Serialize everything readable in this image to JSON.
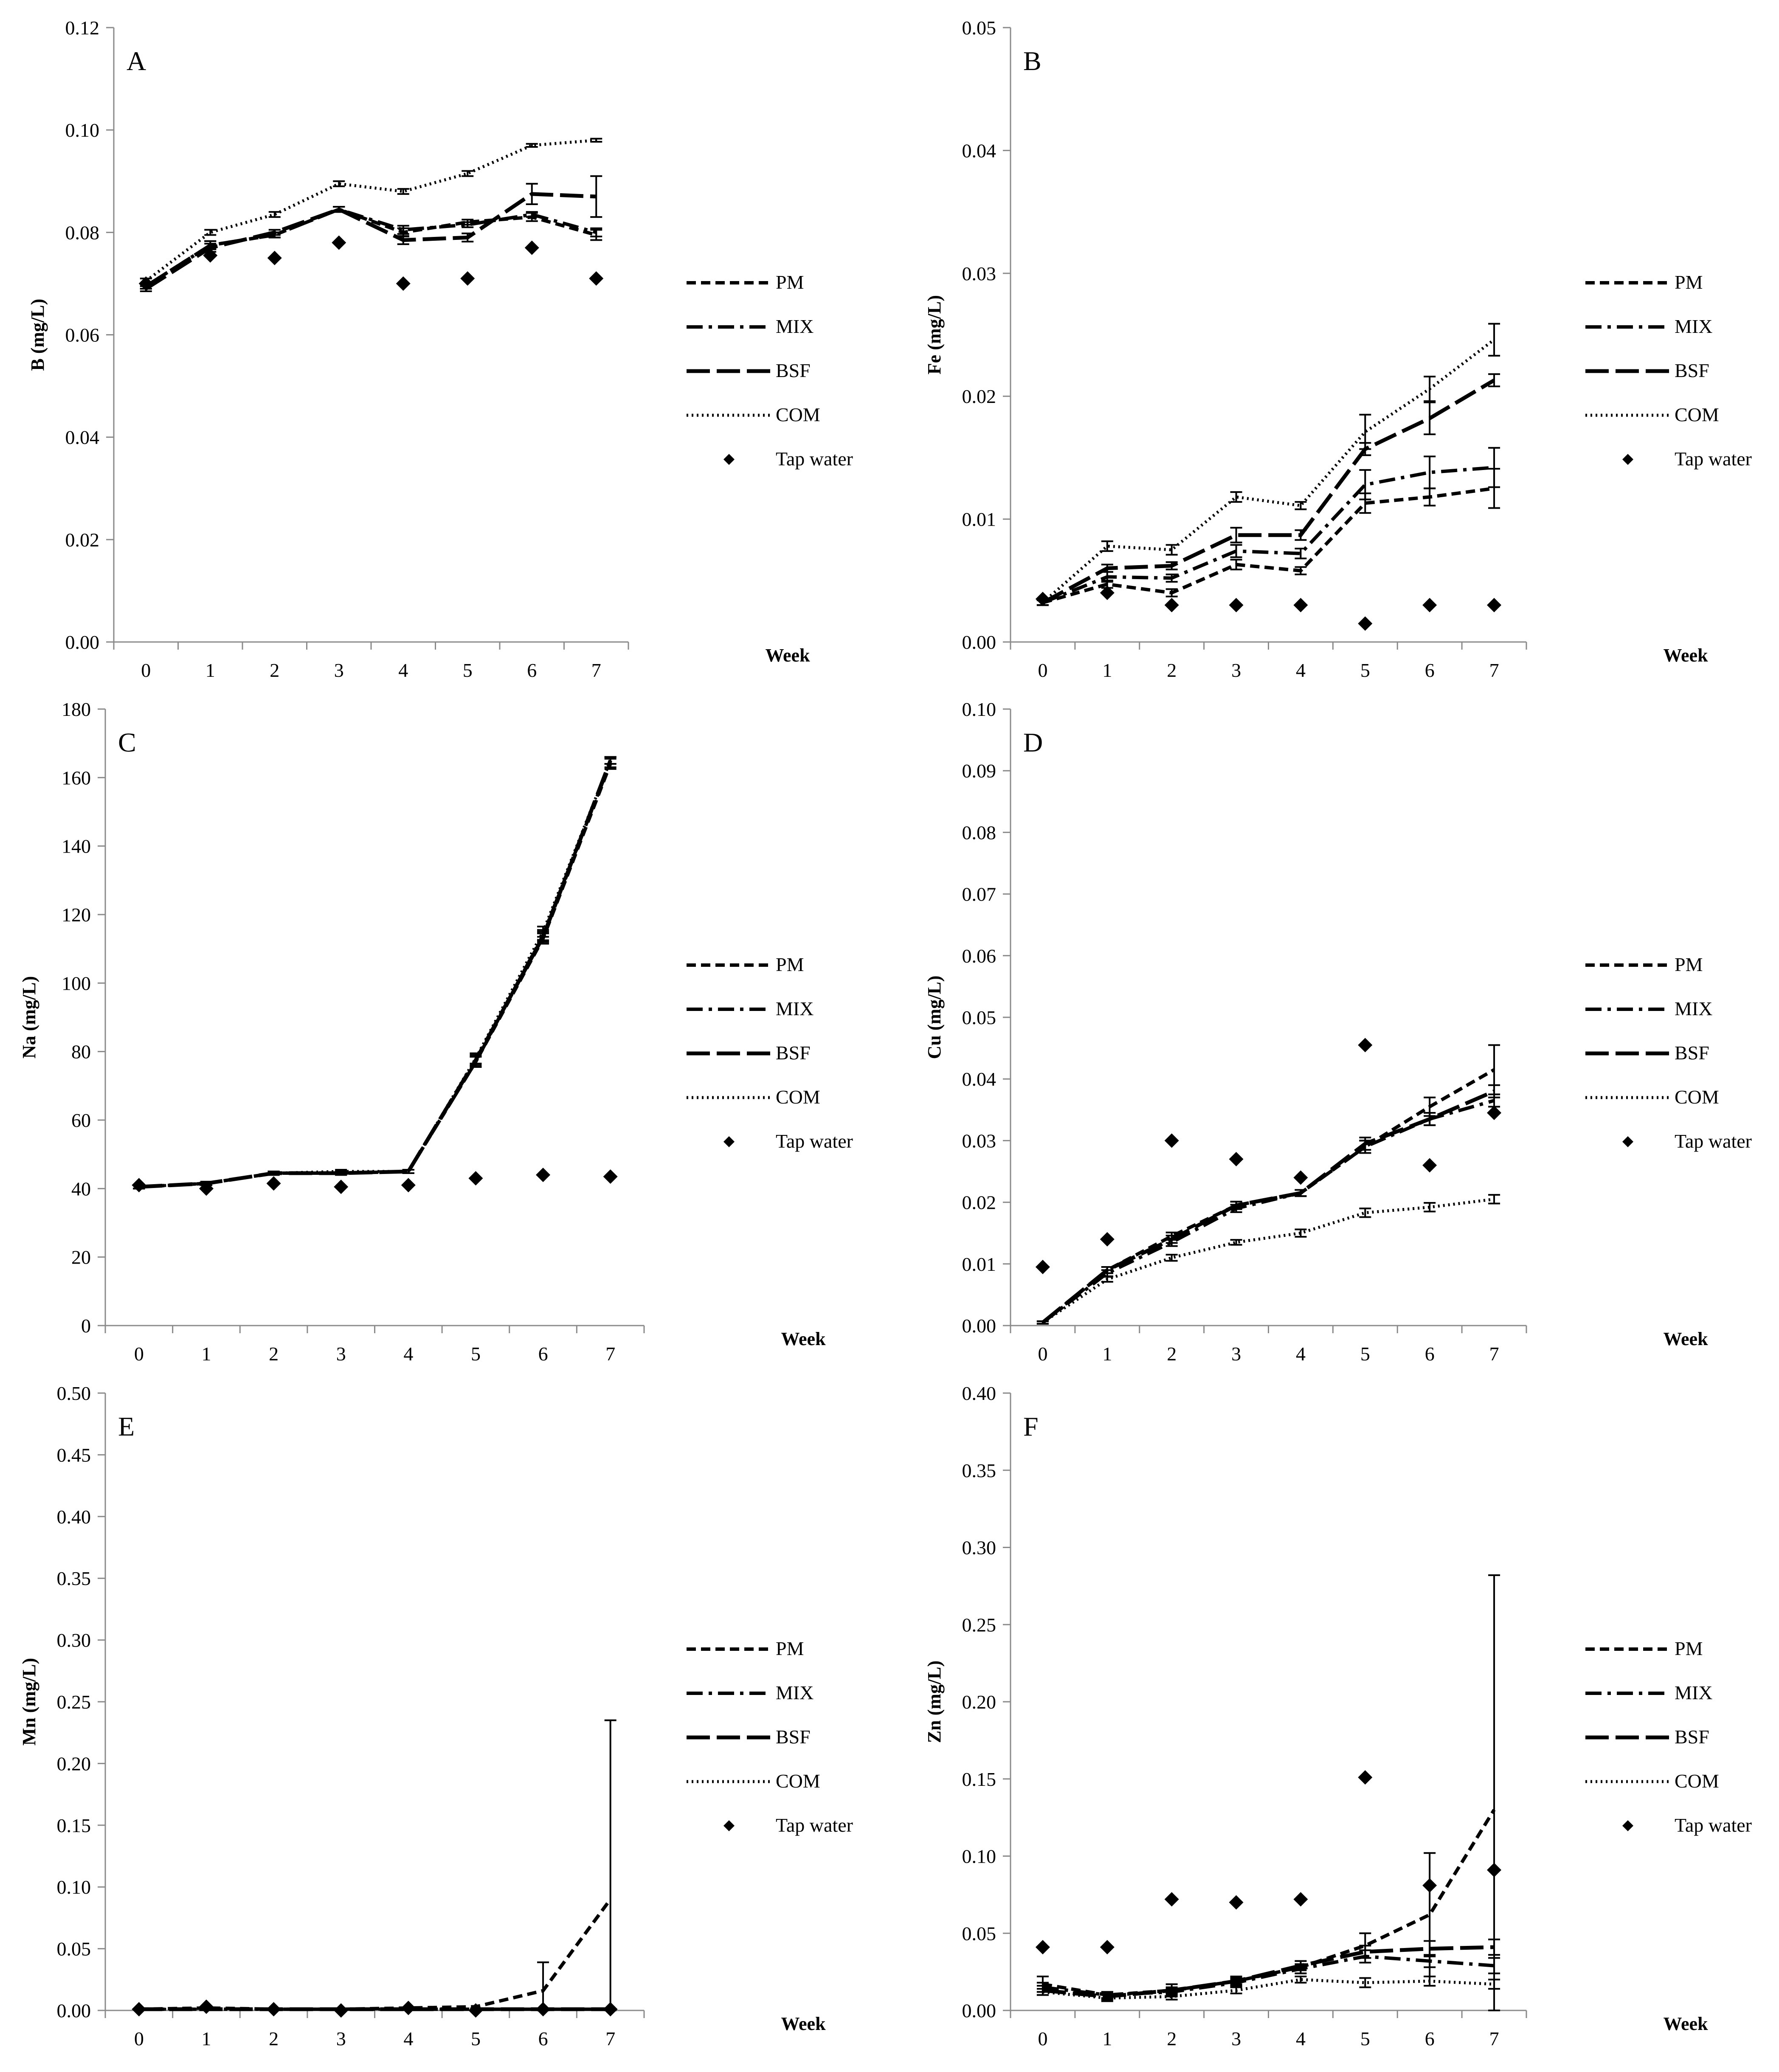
{
  "chart_data": [
    {
      "type": "line",
      "panel_label": "A",
      "ylabel": "B (mg/L)",
      "xlabel": "Week",
      "x": [
        0,
        1,
        2,
        3,
        4,
        5,
        6,
        7
      ],
      "x_tick_labels": [
        "0",
        "1",
        "2",
        "3",
        "4",
        "5",
        "6",
        "7"
      ],
      "ylim": [
        0,
        0.12
      ],
      "y_ticks": [
        0,
        0.02,
        0.04,
        0.06,
        0.08,
        0.1,
        0.12
      ],
      "y_tick_labels": [
        "0.00",
        "0.02",
        "0.04",
        "0.06",
        "0.08",
        "0.10",
        "0.12"
      ],
      "series": [
        {
          "name": "PM",
          "style": "short-dash",
          "values": [
            0.0695,
            0.0775,
            0.0795,
            0.0845,
            0.08,
            0.082,
            0.083,
            0.0795
          ],
          "errors": [
            0.0005,
            0.0008,
            0.0005,
            0.0005,
            0.0008,
            0.0005,
            0.0008,
            0.001
          ]
        },
        {
          "name": "MIX",
          "style": "dash-dot",
          "values": [
            0.0695,
            0.0775,
            0.0795,
            0.0845,
            0.0805,
            0.0815,
            0.0835,
            0.08
          ],
          "errors": [
            0.0005,
            0.0008,
            0.0005,
            0.0005,
            0.0008,
            0.0005,
            0.0005,
            0.0008
          ]
        },
        {
          "name": "BSF",
          "style": "long-dash",
          "values": [
            0.069,
            0.077,
            0.08,
            0.0845,
            0.0785,
            0.079,
            0.0875,
            0.087
          ],
          "errors": [
            0.0005,
            0.0008,
            0.0005,
            0.0005,
            0.0008,
            0.0008,
            0.002,
            0.004
          ]
        },
        {
          "name": "COM",
          "style": "dotted",
          "values": [
            0.0705,
            0.08,
            0.0835,
            0.0895,
            0.088,
            0.0915,
            0.097,
            0.098
          ],
          "errors": [
            0.0005,
            0.0005,
            0.0005,
            0.0005,
            0.0005,
            0.0005,
            0.0003,
            0.0003
          ]
        },
        {
          "name": "Tap water",
          "style": "markers",
          "values": [
            0.07,
            0.0755,
            0.075,
            0.078,
            0.07,
            0.071,
            0.077,
            0.071
          ]
        }
      ]
    },
    {
      "type": "line",
      "panel_label": "B",
      "ylabel": "Fe (mg/L)",
      "xlabel": "Week",
      "x": [
        0,
        1,
        2,
        3,
        4,
        5,
        6,
        7
      ],
      "x_tick_labels": [
        "0",
        "1",
        "2",
        "3",
        "4",
        "5",
        "6",
        "7"
      ],
      "ylim": [
        0,
        0.05
      ],
      "y_ticks": [
        0,
        0.01,
        0.02,
        0.03,
        0.04,
        0.05
      ],
      "y_tick_labels": [
        "0.00",
        "0.01",
        "0.02",
        "0.03",
        "0.04",
        "0.05"
      ],
      "series": [
        {
          "name": "PM",
          "style": "short-dash",
          "values": [
            0.0032,
            0.0047,
            0.004,
            0.0063,
            0.0058,
            0.0113,
            0.0118,
            0.0125
          ],
          "errors": [
            0.0002,
            0.0003,
            0.0003,
            0.0004,
            0.0003,
            0.0008,
            0.0007,
            0.0016
          ]
        },
        {
          "name": "MIX",
          "style": "dash-dot",
          "values": [
            0.0032,
            0.0053,
            0.0052,
            0.0074,
            0.0072,
            0.0128,
            0.0138,
            0.0142
          ],
          "errors": [
            0.0002,
            0.0004,
            0.0003,
            0.0005,
            0.0004,
            0.0012,
            0.0013,
            0.0016
          ]
        },
        {
          "name": "BSF",
          "style": "long-dash",
          "values": [
            0.0032,
            0.006,
            0.0062,
            0.0087,
            0.0087,
            0.0157,
            0.0182,
            0.0213
          ],
          "errors": [
            0.0002,
            0.0003,
            0.0003,
            0.0006,
            0.0004,
            0.0005,
            0.0013,
            0.0005
          ]
        },
        {
          "name": "COM",
          "style": "dotted",
          "values": [
            0.0032,
            0.0078,
            0.0075,
            0.0118,
            0.0111,
            0.0171,
            0.0206,
            0.0246
          ],
          "errors": [
            0.0002,
            0.0004,
            0.0004,
            0.0004,
            0.0003,
            0.0014,
            0.001,
            0.0013
          ]
        },
        {
          "name": "Tap water",
          "style": "markers",
          "values": [
            0.0035,
            0.004,
            0.003,
            0.003,
            0.003,
            0.0015,
            0.003,
            0.003
          ]
        }
      ]
    },
    {
      "type": "line",
      "panel_label": "C",
      "ylabel": "Na (mg/L)",
      "xlabel": "Week",
      "x": [
        0,
        1,
        2,
        3,
        4,
        5,
        6,
        7
      ],
      "x_tick_labels": [
        "0",
        "1",
        "2",
        "3",
        "4",
        "5",
        "6",
        "7"
      ],
      "ylim": [
        0,
        180
      ],
      "y_ticks": [
        0,
        20,
        40,
        60,
        80,
        100,
        120,
        140,
        160,
        180
      ],
      "y_tick_labels": [
        "0",
        "20",
        "40",
        "60",
        "80",
        "100",
        "120",
        "140",
        "160",
        "180"
      ],
      "series": [
        {
          "name": "PM",
          "style": "short-dash",
          "values": [
            40.5,
            41.5,
            44.5,
            44.5,
            45,
            77,
            113,
            164
          ],
          "errors": [
            0.5,
            0.5,
            0.5,
            0.5,
            0.5,
            1.5,
            1.5,
            1.5
          ]
        },
        {
          "name": "MIX",
          "style": "dash-dot",
          "values": [
            40.5,
            41.5,
            44.5,
            44.5,
            45,
            77,
            114,
            164.5
          ],
          "errors": [
            0.5,
            0.5,
            0.5,
            0.5,
            0.5,
            1.5,
            1.5,
            1.5
          ]
        },
        {
          "name": "BSF",
          "style": "long-dash",
          "values": [
            40.5,
            41.5,
            44.5,
            44.5,
            45,
            77.5,
            113.5,
            165
          ],
          "errors": [
            0.5,
            0.5,
            0.5,
            0.5,
            0.5,
            1.5,
            1.5,
            1
          ]
        },
        {
          "name": "COM",
          "style": "dotted",
          "values": [
            40.5,
            41.5,
            44.5,
            45,
            45,
            78,
            115,
            165
          ],
          "errors": [
            0.5,
            0.5,
            0.5,
            0.5,
            0.5,
            1.5,
            1.5,
            1
          ]
        },
        {
          "name": "Tap water",
          "style": "markers",
          "values": [
            41,
            40,
            41.5,
            40.5,
            41,
            43,
            44,
            43.5
          ]
        }
      ]
    },
    {
      "type": "line",
      "panel_label": "D",
      "ylabel": "Cu (mg/L)",
      "xlabel": "Week",
      "x": [
        0,
        1,
        2,
        3,
        4,
        5,
        6,
        7
      ],
      "x_tick_labels": [
        "0",
        "1",
        "2",
        "3",
        "4",
        "5",
        "6",
        "7"
      ],
      "ylim": [
        0,
        0.1
      ],
      "y_ticks": [
        0,
        0.01,
        0.02,
        0.03,
        0.04,
        0.05,
        0.06,
        0.07,
        0.08,
        0.09,
        0.1
      ],
      "y_tick_labels": [
        "0.00",
        "0.01",
        "0.02",
        "0.03",
        "0.04",
        "0.05",
        "0.06",
        "0.07",
        "0.08",
        "0.09",
        "0.10"
      ],
      "series": [
        {
          "name": "PM",
          "style": "short-dash",
          "values": [
            0.0005,
            0.009,
            0.0145,
            0.0195,
            0.0215,
            0.029,
            0.0355,
            0.0415
          ],
          "errors": [
            0.0002,
            0.0005,
            0.0006,
            0.0006,
            0.0005,
            0.001,
            0.0015,
            0.004
          ]
        },
        {
          "name": "MIX",
          "style": "dash-dot",
          "values": [
            0.0005,
            0.0085,
            0.0135,
            0.019,
            0.0215,
            0.029,
            0.0335,
            0.0365
          ],
          "errors": [
            0.0002,
            0.0005,
            0.0006,
            0.0006,
            0.0005,
            0.001,
            0.001,
            0.001
          ]
        },
        {
          "name": "BSF",
          "style": "long-dash",
          "values": [
            0.0005,
            0.009,
            0.014,
            0.0195,
            0.0215,
            0.0295,
            0.0335,
            0.038
          ],
          "errors": [
            0.0002,
            0.0005,
            0.0006,
            0.0006,
            0.0005,
            0.001,
            0.001,
            0.001
          ]
        },
        {
          "name": "COM",
          "style": "dotted",
          "values": [
            0.0005,
            0.0075,
            0.011,
            0.0135,
            0.015,
            0.0183,
            0.0192,
            0.0205
          ],
          "errors": [
            0.0002,
            0.0004,
            0.0005,
            0.0004,
            0.0006,
            0.0007,
            0.0007,
            0.0007
          ]
        },
        {
          "name": "Tap water",
          "style": "markers",
          "values": [
            0.0095,
            0.014,
            0.03,
            0.027,
            0.024,
            0.0455,
            0.026,
            0.0345
          ]
        }
      ]
    },
    {
      "type": "line",
      "panel_label": "E",
      "ylabel": "Mn (mg/L)",
      "xlabel": "Week",
      "x": [
        0,
        1,
        2,
        3,
        4,
        5,
        6,
        7
      ],
      "x_tick_labels": [
        "0",
        "1",
        "2",
        "3",
        "4",
        "5",
        "6",
        "7"
      ],
      "ylim": [
        0,
        0.5
      ],
      "y_ticks": [
        0,
        0.05,
        0.1,
        0.15,
        0.2,
        0.25,
        0.3,
        0.35,
        0.4,
        0.45,
        0.5
      ],
      "y_tick_labels": [
        "0.00",
        "0.05",
        "0.10",
        "0.15",
        "0.20",
        "0.25",
        "0.30",
        "0.35",
        "0.40",
        "0.45",
        "0.50"
      ],
      "series": [
        {
          "name": "PM",
          "style": "short-dash",
          "values": [
            0.001,
            0.002,
            0.001,
            0.001,
            0.002,
            0.003,
            0.016,
            0.09
          ],
          "errors": [
            0,
            0,
            0,
            0,
            0,
            0,
            0.023,
            0.145
          ]
        },
        {
          "name": "MIX",
          "style": "dash-dot",
          "values": [
            0.001,
            0.001,
            0.001,
            0.001,
            0.001,
            0.001,
            0.001,
            0.001
          ]
        },
        {
          "name": "BSF",
          "style": "long-dash",
          "values": [
            0.001,
            0.001,
            0.001,
            0.001,
            0.001,
            0.001,
            0.001,
            0.001
          ]
        },
        {
          "name": "COM",
          "style": "dotted",
          "values": [
            0.001,
            0.001,
            0.001,
            0.001,
            0.001,
            0.001,
            0.001,
            0.001
          ]
        },
        {
          "name": "Tap water",
          "style": "markers",
          "values": [
            0.001,
            0.003,
            0.001,
            0.0,
            0.002,
            0.0,
            0.001,
            0.001
          ]
        }
      ]
    },
    {
      "type": "line",
      "panel_label": "F",
      "ylabel": "Zn (mg/L)",
      "xlabel": "Week",
      "x": [
        0,
        1,
        2,
        3,
        4,
        5,
        6,
        7
      ],
      "x_tick_labels": [
        "0",
        "1",
        "2",
        "3",
        "4",
        "5",
        "6",
        "7"
      ],
      "ylim": [
        0,
        0.4
      ],
      "y_ticks": [
        0,
        0.05,
        0.1,
        0.15,
        0.2,
        0.25,
        0.3,
        0.35,
        0.4
      ],
      "y_tick_labels": [
        "0.00",
        "0.05",
        "0.10",
        "0.15",
        "0.20",
        "0.25",
        "0.30",
        "0.35",
        "0.40"
      ],
      "series": [
        {
          "name": "PM",
          "style": "short-dash",
          "values": [
            0.017,
            0.01,
            0.013,
            0.019,
            0.028,
            0.042,
            0.062,
            0.13
          ],
          "errors": [
            0.005,
            0.002,
            0.004,
            0.003,
            0.004,
            0.008,
            0.04,
            0.152
          ]
        },
        {
          "name": "MIX",
          "style": "dash-dot",
          "values": [
            0.015,
            0.01,
            0.012,
            0.018,
            0.027,
            0.035,
            0.032,
            0.029
          ],
          "errors": [
            0.003,
            0.002,
            0.002,
            0.002,
            0.003,
            0.004,
            0.004,
            0.005
          ]
        },
        {
          "name": "BSF",
          "style": "long-dash",
          "values": [
            0.013,
            0.009,
            0.013,
            0.019,
            0.029,
            0.038,
            0.04,
            0.041
          ],
          "errors": [
            0.003,
            0.002,
            0.002,
            0.002,
            0.003,
            0.004,
            0.005,
            0.005
          ]
        },
        {
          "name": "COM",
          "style": "dotted",
          "values": [
            0.012,
            0.008,
            0.009,
            0.013,
            0.02,
            0.018,
            0.019,
            0.017
          ],
          "errors": [
            0.002,
            0.002,
            0.002,
            0.002,
            0.002,
            0.003,
            0.003,
            0.003
          ]
        },
        {
          "name": "Tap water",
          "style": "markers",
          "values": [
            0.041,
            0.041,
            0.072,
            0.07,
            0.072,
            0.151,
            0.081,
            0.091
          ]
        }
      ]
    }
  ]
}
